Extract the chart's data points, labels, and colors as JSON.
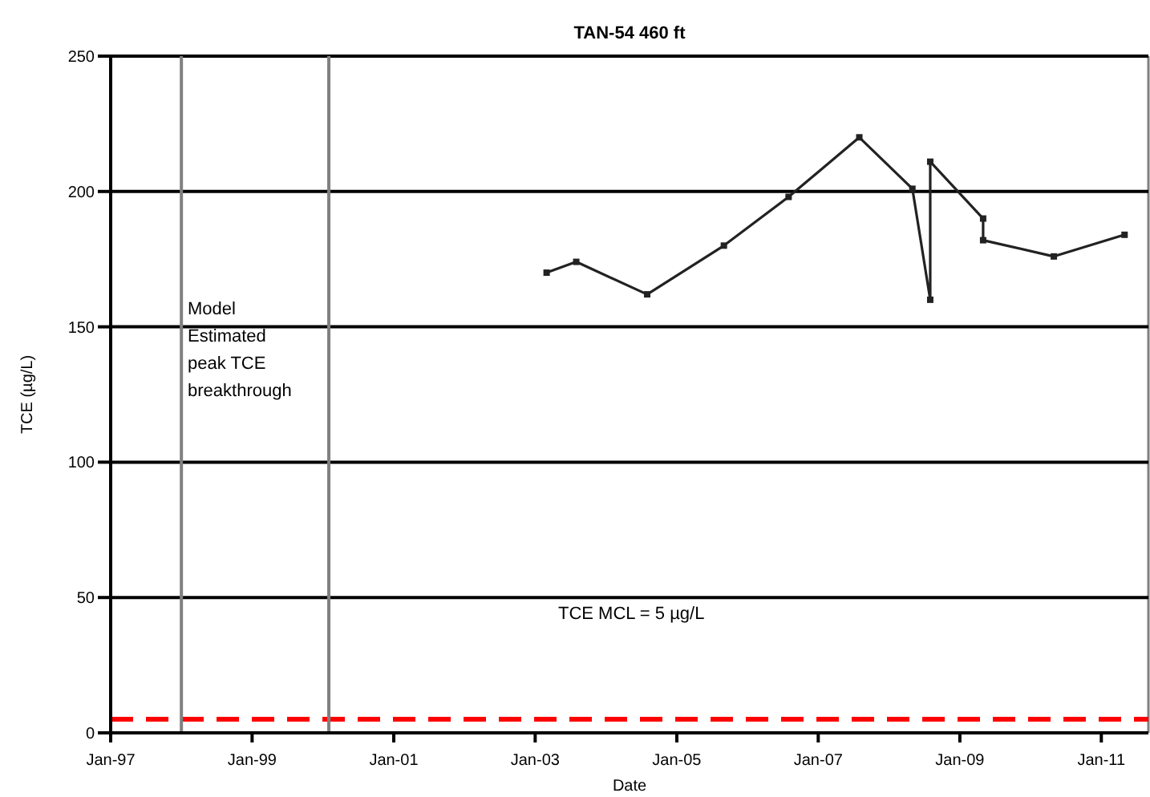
{
  "chart_data": {
    "type": "line",
    "title": "TAN-54  460 ft",
    "xlabel": "Date",
    "ylabel": "TCE (µg/L)",
    "x": [
      "2003-03",
      "2003-08",
      "2004-08",
      "2005-09",
      "2006-08",
      "2007-08",
      "2008-05",
      "2008-08",
      "2008-08",
      "2009-05",
      "2009-05",
      "2010-05",
      "2011-05"
    ],
    "series": [
      {
        "color": "#222222",
        "values": [
          170,
          174,
          162,
          180,
          198,
          220,
          201,
          160,
          211,
          190,
          182,
          176,
          184
        ]
      }
    ],
    "xlim": [
      "1997-01",
      "2011-09"
    ],
    "xticks": [
      {
        "value": "1997-01",
        "label": "Jan-97"
      },
      {
        "value": "1999-01",
        "label": "Jan-99"
      },
      {
        "value": "2001-01",
        "label": "Jan-01"
      },
      {
        "value": "2003-01",
        "label": "Jan-03"
      },
      {
        "value": "2005-01",
        "label": "Jan-05"
      },
      {
        "value": "2007-01",
        "label": "Jan-07"
      },
      {
        "value": "2009-01",
        "label": "Jan-09"
      },
      {
        "value": "2011-01",
        "label": "Jan-11"
      }
    ],
    "ylim": [
      0,
      250
    ],
    "yticks": [
      0,
      50,
      100,
      150,
      200,
      250
    ],
    "grid": "y",
    "marker": "square",
    "line_style": "solid",
    "ref_lines": [
      {
        "axis": "y",
        "value": 5,
        "color": "#ff0000",
        "line_style": "dashed"
      },
      {
        "axis": "x",
        "value": "1998-01",
        "color": "#808080"
      },
      {
        "axis": "x",
        "value": "2000-02",
        "color": "#808080"
      }
    ],
    "annotations": [
      "Model Estimated peak TCE breakthrough",
      "TCE MCL = 5 µg/L"
    ]
  }
}
